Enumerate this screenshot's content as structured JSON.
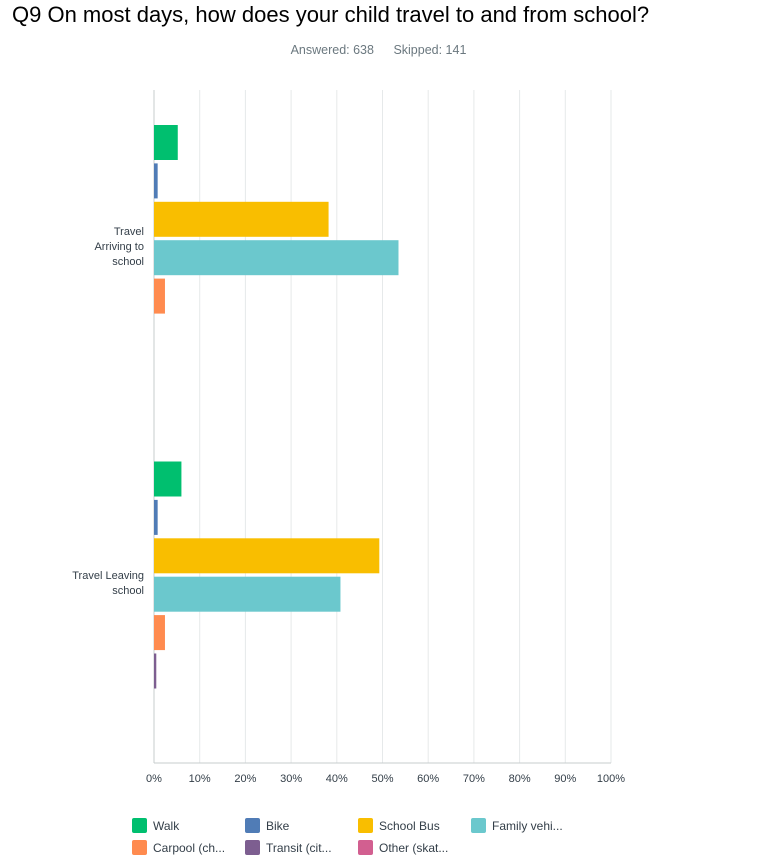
{
  "question": {
    "title": "Q9 On most days, how does your child travel to and from school?",
    "answered_label": "Answered: 638",
    "skipped_label": "Skipped: 141"
  },
  "chart_data": {
    "type": "bar",
    "orientation": "horizontal",
    "categories": [
      "Travel\nArriving to\nschool",
      "Travel Leaving\nschool"
    ],
    "series": [
      {
        "name": "Walk",
        "color": "#00bf6f",
        "values": [
          5.2,
          6.0
        ]
      },
      {
        "name": "Bike",
        "color": "#507cb6",
        "values": [
          0.8,
          0.8
        ]
      },
      {
        "name": "School Bus",
        "color": "#f9be00",
        "values": [
          38.2,
          49.3
        ]
      },
      {
        "name": "Family vehi...",
        "color": "#6bc8cd",
        "values": [
          53.5,
          40.8
        ]
      },
      {
        "name": "Carpool (ch...",
        "color": "#ff8b4f",
        "values": [
          2.4,
          2.4
        ]
      },
      {
        "name": "Transit (cit...",
        "color": "#7d5e90",
        "values": [
          0.0,
          0.5
        ]
      },
      {
        "name": "Other (skat...",
        "color": "#d25f90",
        "values": [
          0.0,
          0.0
        ]
      }
    ],
    "xlim": [
      0,
      100
    ],
    "x_ticks": [
      "0%",
      "10%",
      "20%",
      "30%",
      "40%",
      "50%",
      "60%",
      "70%",
      "80%",
      "90%",
      "100%"
    ],
    "grid": true,
    "legend_position": "bottom"
  }
}
